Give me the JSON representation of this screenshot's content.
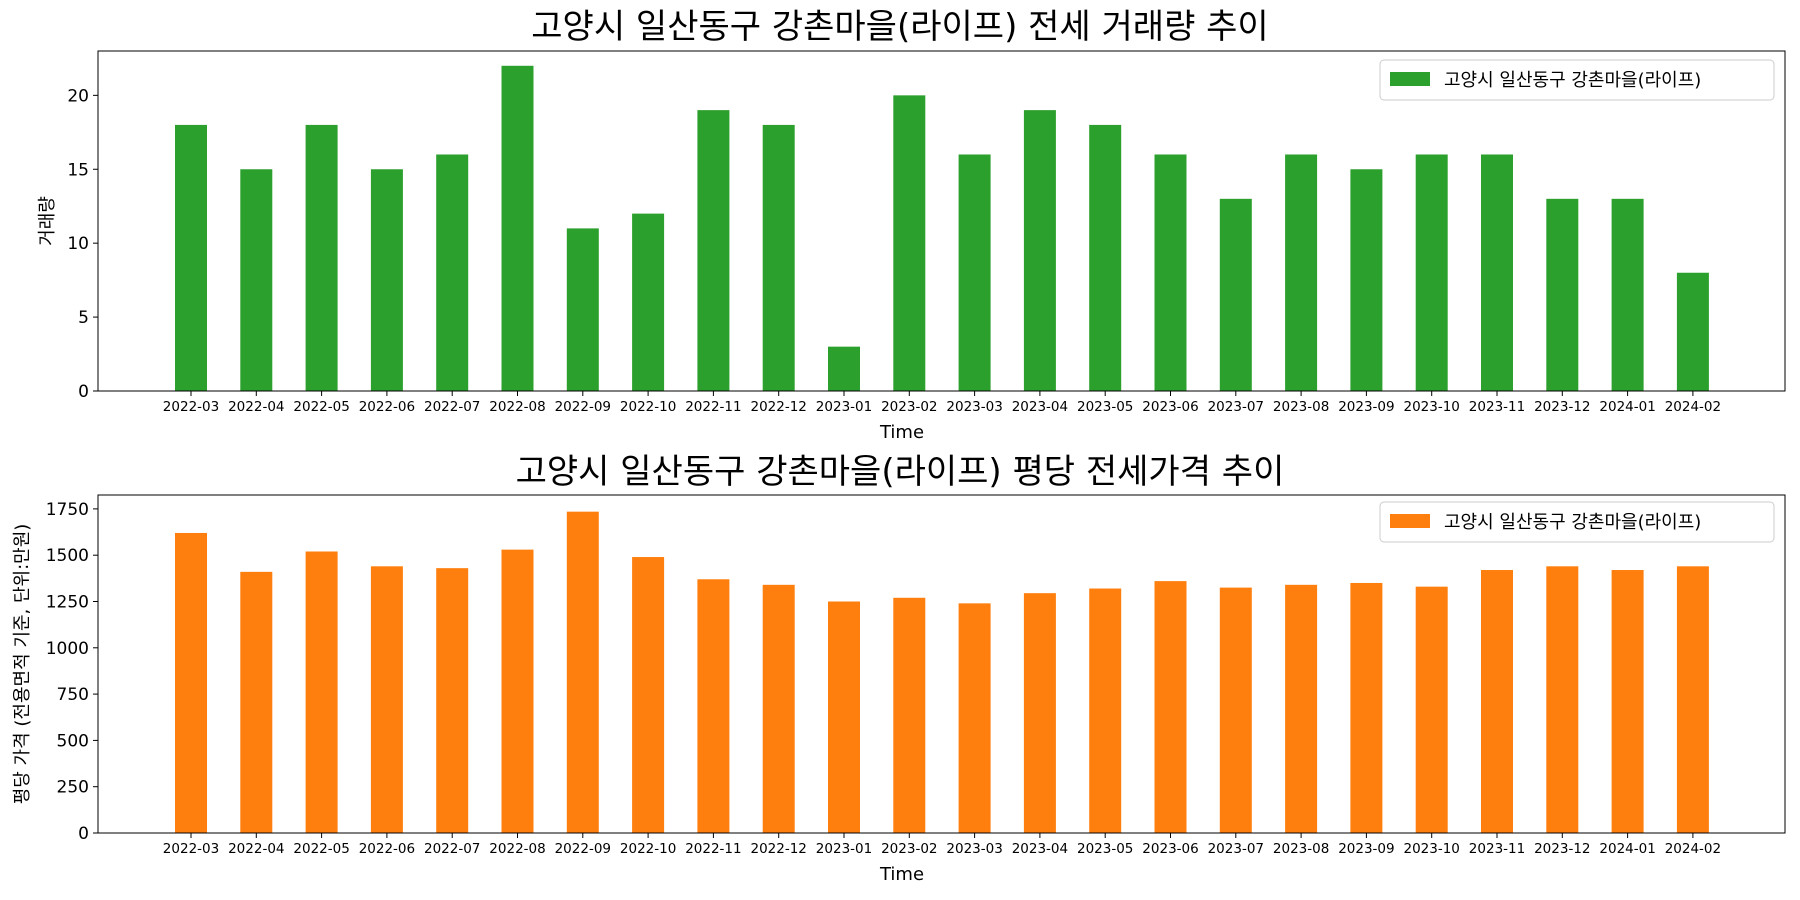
{
  "chart_data": [
    {
      "type": "bar",
      "title": "고양시 일산동구 강촌마을(라이프) 전세 거래량 추이",
      "xlabel": "Time",
      "ylabel": "거래량",
      "ylim": [
        0,
        23
      ],
      "yticks": [
        0,
        5,
        10,
        15,
        20
      ],
      "grid": false,
      "legend_position": "top-right",
      "categories": [
        "2022-03",
        "2022-04",
        "2022-05",
        "2022-06",
        "2022-07",
        "2022-08",
        "2022-09",
        "2022-10",
        "2022-11",
        "2022-12",
        "2023-01",
        "2023-02",
        "2023-03",
        "2023-04",
        "2023-05",
        "2023-06",
        "2023-07",
        "2023-08",
        "2023-09",
        "2023-10",
        "2023-11",
        "2023-12",
        "2024-01",
        "2024-02"
      ],
      "series": [
        {
          "name": "고양시 일산동구 강촌마을(라이프)",
          "color": "#2ca02c",
          "values": [
            18,
            15,
            18,
            15,
            16,
            22,
            11,
            12,
            19,
            18,
            3,
            20,
            16,
            19,
            18,
            16,
            13,
            16,
            15,
            16,
            16,
            13,
            13,
            8
          ]
        }
      ]
    },
    {
      "type": "bar",
      "title": "고양시 일산동구 강촌마을(라이프) 평당 전세가격 추이",
      "xlabel": "Time",
      "ylabel": "평당 가격 (전용면적 기준, 단위:만원)",
      "ylim": [
        0,
        1825
      ],
      "yticks": [
        0,
        250,
        500,
        750,
        1000,
        1250,
        1500,
        1750
      ],
      "grid": false,
      "legend_position": "top-right",
      "categories": [
        "2022-03",
        "2022-04",
        "2022-05",
        "2022-06",
        "2022-07",
        "2022-08",
        "2022-09",
        "2022-10",
        "2022-11",
        "2022-12",
        "2023-01",
        "2023-02",
        "2023-03",
        "2023-04",
        "2023-05",
        "2023-06",
        "2023-07",
        "2023-08",
        "2023-09",
        "2023-10",
        "2023-11",
        "2023-12",
        "2024-01",
        "2024-02"
      ],
      "series": [
        {
          "name": "고양시 일산동구 강촌마을(라이프)",
          "color": "#ff7f0e",
          "values": [
            1620,
            1410,
            1520,
            1440,
            1430,
            1530,
            1735,
            1490,
            1370,
            1340,
            1250,
            1270,
            1240,
            1295,
            1320,
            1360,
            1325,
            1340,
            1350,
            1330,
            1420,
            1440,
            1420,
            1440
          ]
        }
      ]
    }
  ]
}
